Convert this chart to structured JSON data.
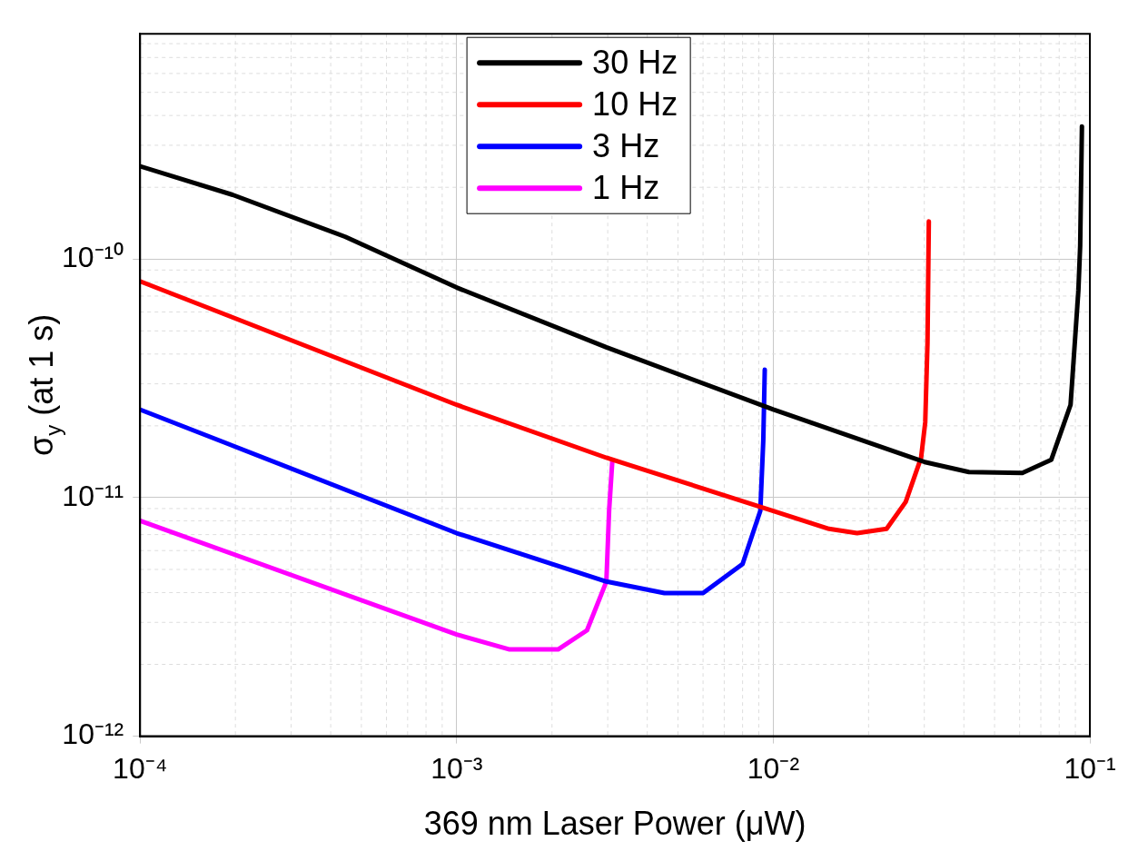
{
  "chart_data": {
    "type": "line",
    "xlabel": "369 nm Laser Power (μW)",
    "ylabel": "σ$_{y}$ (at 1 s)",
    "log": "xy",
    "grid": true,
    "legend": "top",
    "marker": "none",
    "line_style": "solid",
    "xlim": [
      0.0001,
      0.1
    ],
    "ylim": [
      1e-12,
      8.8e-10
    ],
    "xticks": [
      {
        "value": 0.0001,
        "label": "10⁻⁴"
      },
      {
        "value": 0.001,
        "label": "10⁻³"
      },
      {
        "value": 0.01,
        "label": "10⁻²"
      },
      {
        "value": 0.1,
        "label": "10⁻¹"
      }
    ],
    "yticks": [
      {
        "value": 1e-12,
        "label": "10⁻¹²"
      },
      {
        "value": 1e-11,
        "label": "10⁻¹¹"
      },
      {
        "value": 1e-10,
        "label": "10⁻¹⁰"
      }
    ],
    "series": [
      {
        "name": "30 Hz",
        "color": "#000000",
        "x": [
          0.0001,
          0.000196,
          0.000445,
          0.001,
          0.00297,
          0.01,
          0.0301,
          0.0415,
          0.0612,
          0.0755,
          0.0869,
          0.092,
          0.0932,
          0.0944
        ],
        "values": [
          2.45e-10,
          1.86e-10,
          1.24e-10,
          7.6e-11,
          4.27e-11,
          2.34e-11,
          1.41e-11,
          1.28e-11,
          1.27e-11,
          1.44e-11,
          2.45e-11,
          7.4e-11,
          1.14e-10,
          3.6e-10
        ]
      },
      {
        "name": "10 Hz",
        "color": "#ff0000",
        "x": [
          0.0001,
          0.001,
          0.00297,
          0.01,
          0.015,
          0.0184,
          0.0228,
          0.0262,
          0.0293,
          0.0302,
          0.0307,
          0.031
        ],
        "values": [
          8.07e-11,
          2.45e-11,
          1.47e-11,
          8.8e-12,
          7.4e-12,
          7.1e-12,
          7.4e-12,
          9.6e-12,
          1.47e-11,
          2.07e-11,
          4.45e-11,
          1.44e-10
        ]
      },
      {
        "name": "3 Hz",
        "color": "#0000ff",
        "x": [
          0.0001,
          0.001,
          0.00297,
          0.00453,
          0.006,
          0.008,
          0.0091,
          0.0093,
          0.0094
        ],
        "values": [
          2.34e-11,
          7.1e-12,
          4.45e-12,
          3.98e-12,
          3.98e-12,
          5.27e-12,
          8.8e-12,
          1.74e-11,
          3.44e-11
        ]
      },
      {
        "name": "1 Hz",
        "color": "#ff00ff",
        "x": [
          0.0001,
          0.001,
          0.00147,
          0.00209,
          0.00258,
          0.00297,
          0.00303,
          0.0031
        ],
        "values": [
          8e-12,
          2.67e-12,
          2.31e-12,
          2.31e-12,
          2.78e-12,
          4.45e-12,
          8.8e-12,
          1.41e-11
        ]
      }
    ]
  }
}
